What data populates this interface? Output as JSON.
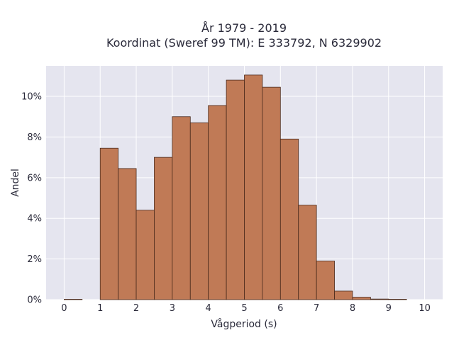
{
  "chart_data": {
    "type": "bar",
    "title_line1": "År 1979 - 2019",
    "title_line2": "Koordinat (Sweref 99 TM): E 333792, N 6329902",
    "xlabel": "Vågperiod (s)",
    "ylabel": "Andel",
    "xlim": [
      -0.5,
      10.5
    ],
    "ylim": [
      0,
      11.5
    ],
    "x_ticks": [
      0,
      1,
      2,
      3,
      4,
      5,
      6,
      7,
      8,
      9,
      10
    ],
    "y_ticks": [
      0,
      2,
      4,
      6,
      8,
      10
    ],
    "y_tick_labels": [
      "0%",
      "2%",
      "4%",
      "6%",
      "8%",
      "10%"
    ],
    "bin_width": 0.5,
    "bins": [
      {
        "start": 0.0,
        "value": 0.02
      },
      {
        "start": 0.5,
        "value": 0.0
      },
      {
        "start": 1.0,
        "value": 7.45
      },
      {
        "start": 1.5,
        "value": 6.45
      },
      {
        "start": 2.0,
        "value": 4.4
      },
      {
        "start": 2.5,
        "value": 7.0
      },
      {
        "start": 3.0,
        "value": 9.0
      },
      {
        "start": 3.5,
        "value": 8.7
      },
      {
        "start": 4.0,
        "value": 9.55
      },
      {
        "start": 4.5,
        "value": 10.8
      },
      {
        "start": 5.0,
        "value": 11.05
      },
      {
        "start": 5.5,
        "value": 10.45
      },
      {
        "start": 6.0,
        "value": 7.9
      },
      {
        "start": 6.5,
        "value": 4.65
      },
      {
        "start": 7.0,
        "value": 1.9
      },
      {
        "start": 7.5,
        "value": 0.42
      },
      {
        "start": 8.0,
        "value": 0.12
      },
      {
        "start": 8.5,
        "value": 0.03
      },
      {
        "start": 9.0,
        "value": 0.02
      }
    ],
    "grid": true,
    "colors": {
      "bar_fill": "#c07a56",
      "bar_stroke": "#4a2a1c",
      "plot_bg": "#e5e5ef",
      "grid": "#ffffff"
    }
  }
}
